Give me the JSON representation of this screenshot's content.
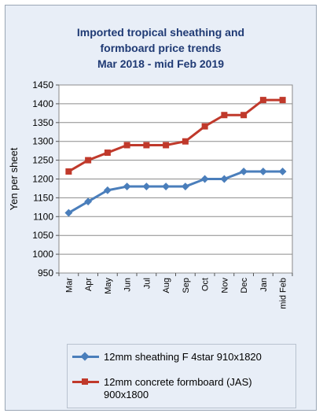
{
  "chart_data": {
    "type": "line",
    "title": [
      "Imported tropical sheathing and",
      "formboard price trends",
      "Mar 2018 - mid Feb 2019"
    ],
    "ylabel": "Yen per sheet",
    "xlabel": "",
    "ylim": [
      950,
      1450
    ],
    "yticks": [
      950,
      1000,
      1050,
      1100,
      1150,
      1200,
      1250,
      1300,
      1350,
      1400,
      1450
    ],
    "categories": [
      "Mar",
      "Apr",
      "May",
      "Jun",
      "Jul",
      "Aug",
      "Sep",
      "Oct",
      "Nov",
      "Dec",
      "Jan",
      "mid Feb"
    ],
    "grid": true,
    "legend": "bottom",
    "series": [
      {
        "name": "12mm sheathing F 4star 910x1820",
        "color": "#4a7ebb",
        "marker": "diamond",
        "values": [
          1110,
          1140,
          1170,
          1180,
          1180,
          1180,
          1180,
          1200,
          1200,
          1220,
          1220,
          1220
        ]
      },
      {
        "name": "12mm concrete formboard (JAS) 900x1800",
        "color": "#c0392b",
        "marker": "square",
        "values": [
          1220,
          1250,
          1270,
          1290,
          1290,
          1290,
          1300,
          1340,
          1370,
          1370,
          1410,
          1410
        ]
      }
    ]
  }
}
